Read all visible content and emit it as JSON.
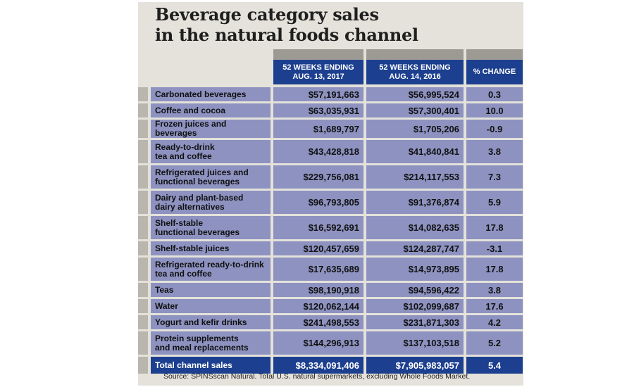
{
  "title_line1": "Beverage category sales",
  "title_line2": "in the natural foods channel",
  "chart_data": {
    "type": "table",
    "columns": [
      "52 WEEKS ENDING AUG. 13, 2017",
      "52 WEEKS ENDING AUG. 14, 2016",
      "% CHANGE"
    ],
    "column_lines": [
      [
        "52 WEEKS ENDING",
        "AUG. 13, 2017"
      ],
      [
        "52 WEEKS ENDING",
        "AUG. 14, 2016"
      ],
      [
        "% CHANGE"
      ]
    ],
    "rows": [
      {
        "category": [
          "Carbonated beverages"
        ],
        "y2017": "$57,191,663",
        "y2016": "$56,995,524",
        "change": "0.3"
      },
      {
        "category": [
          "Coffee and cocoa"
        ],
        "y2017": "$63,035,931",
        "y2016": "$57,300,401",
        "change": "10.0"
      },
      {
        "category": [
          "Frozen juices and beverages"
        ],
        "y2017": "$1,689,797",
        "y2016": "$1,705,206",
        "change": "-0.9"
      },
      {
        "category": [
          "Ready-to-drink",
          "tea and coffee"
        ],
        "y2017": "$43,428,818",
        "y2016": "$41,840,841",
        "change": "3.8"
      },
      {
        "category": [
          "Refrigerated juices and",
          "functional beverages"
        ],
        "y2017": "$229,756,081",
        "y2016": "$214,117,553",
        "change": "7.3"
      },
      {
        "category": [
          "Dairy and plant-based",
          "dairy alternatives"
        ],
        "y2017": "$96,793,805",
        "y2016": "$91,376,874",
        "change": "5.9"
      },
      {
        "category": [
          "Shelf-stable",
          "functional beverages"
        ],
        "y2017": "$16,592,691",
        "y2016": "$14,082,635",
        "change": "17.8"
      },
      {
        "category": [
          "Shelf-stable juices"
        ],
        "y2017": "$120,457,659",
        "y2016": "$124,287,747",
        "change": "-3.1"
      },
      {
        "category": [
          "Refrigerated ready-to-drink",
          "tea and coffee"
        ],
        "y2017": "$17,635,689",
        "y2016": "$14,973,895",
        "change": "17.8"
      },
      {
        "category": [
          "Teas"
        ],
        "y2017": "$98,190,918",
        "y2016": "$94,596,422",
        "change": "3.8"
      },
      {
        "category": [
          "Water"
        ],
        "y2017": "$120,062,144",
        "y2016": "$102,099,687",
        "change": "17.6"
      },
      {
        "category": [
          "Yogurt and kefir drinks"
        ],
        "y2017": "$241,498,553",
        "y2016": "$231,871,303",
        "change": "4.2"
      },
      {
        "category": [
          "Protein supplements",
          "and meal replacements"
        ],
        "y2017": "$144,296,913",
        "y2016": "$137,103,518",
        "change": "5.2"
      }
    ],
    "total": {
      "category": "Total channel sales",
      "y2017": "$8,334,091,406",
      "y2016": "$7,905,983,057",
      "change": "5.4"
    }
  },
  "source": "Source: SPINSscan Natural. Total U.S. natural supermarkets, excluding Whole Foods Market.",
  "colors": {
    "header_blue": "#1c3f8f",
    "row_lavender": "#8d92c0",
    "panel_beige": "#e4e2da",
    "cap_gray": "#9c9a93"
  }
}
